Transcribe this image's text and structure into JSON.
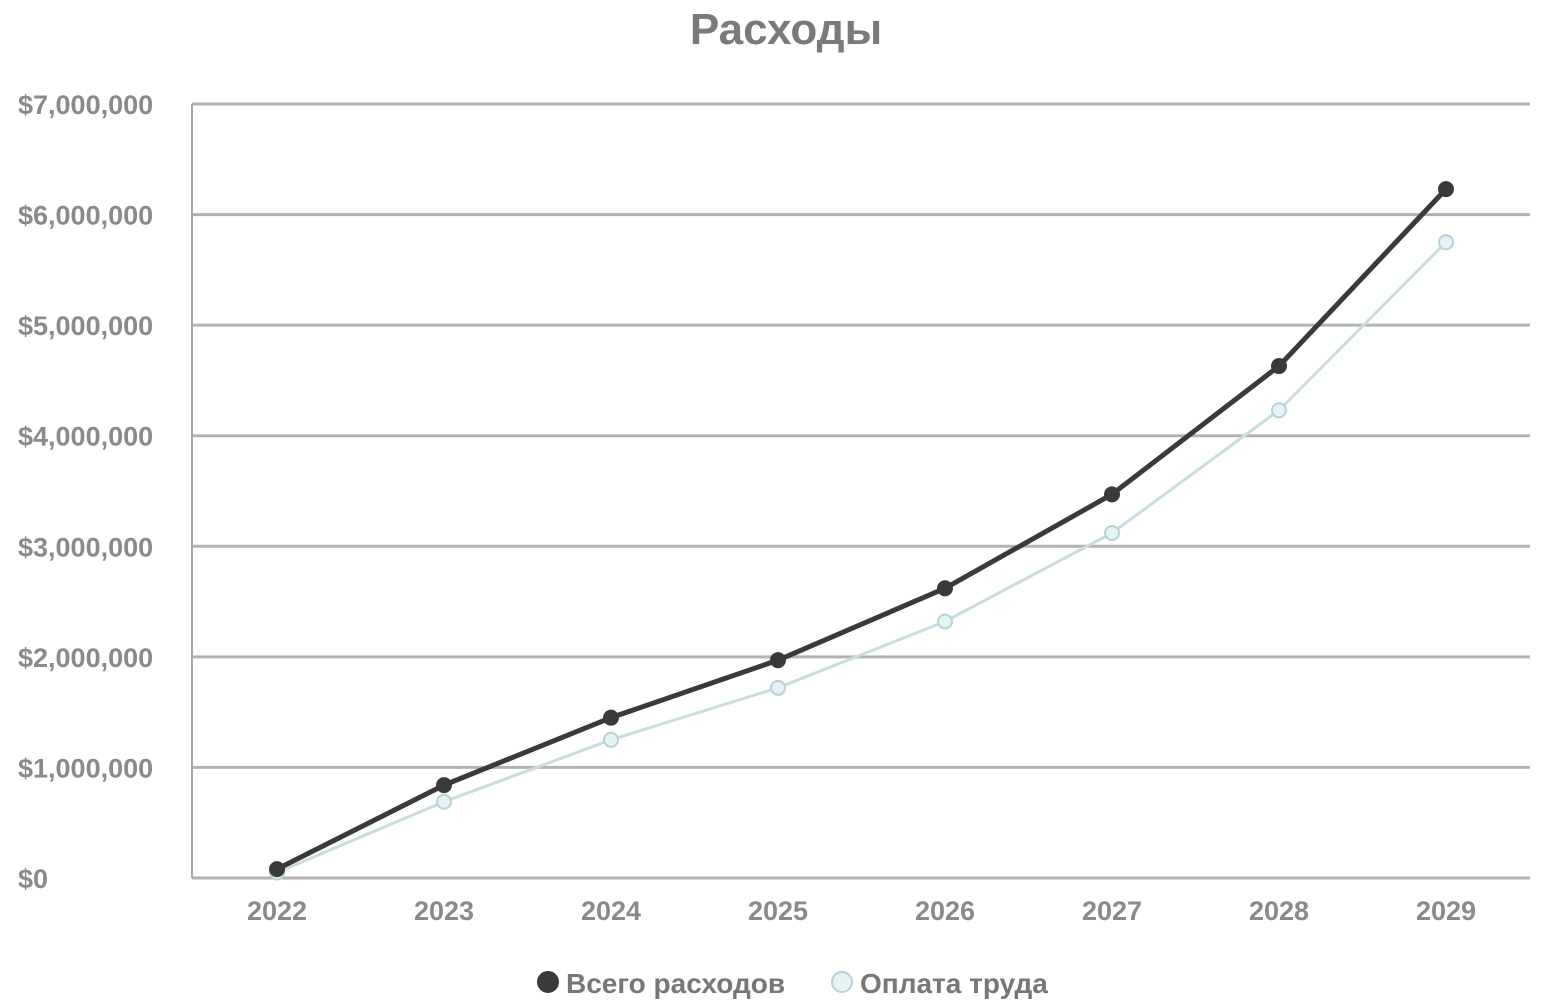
{
  "chart_data": {
    "type": "line",
    "title": "Расходы",
    "categories": [
      "2022",
      "2023",
      "2024",
      "2025",
      "2026",
      "2027",
      "2028",
      "2029"
    ],
    "ylim": [
      0,
      7000000
    ],
    "yticks": [
      0,
      1000000,
      2000000,
      3000000,
      4000000,
      5000000,
      6000000,
      7000000
    ],
    "ytick_labels": [
      "$0",
      "$1,000,000",
      "$2,000,000",
      "$3,000,000",
      "$4,000,000",
      "$5,000,000",
      "$6,000,000",
      "$7,000,000"
    ],
    "grid": true,
    "legend_position": "bottom",
    "series": [
      {
        "name": "Всего расходов",
        "color": "#3a3a3a",
        "marker_fill": "#3a3a3a",
        "values": [
          80000,
          840000,
          1450000,
          1970000,
          2620000,
          3470000,
          4630000,
          6230000
        ]
      },
      {
        "name": "Оплата труда",
        "color": "#c9dde0",
        "marker_fill": "#e6f3f5",
        "values": [
          50000,
          690000,
          1250000,
          1720000,
          2320000,
          3120000,
          4230000,
          5750000
        ]
      }
    ]
  }
}
